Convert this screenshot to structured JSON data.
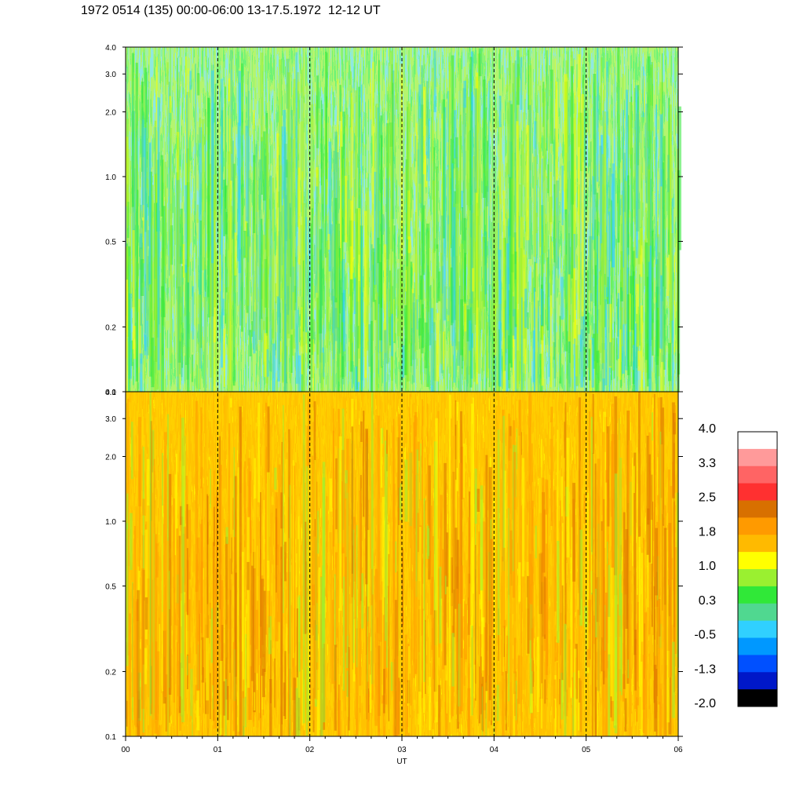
{
  "title": "1972 0514 (135) 00:00-06:00 13-17.5.1972  12-12 UT",
  "chart_data": {
    "type": "heatmap",
    "panels": [
      {
        "name": "",
        "ylim": [
          0.1,
          4.0
        ],
        "yscale": "log",
        "dominant": "green"
      },
      {
        "name": "",
        "ylim": [
          0.1,
          4.0
        ],
        "yscale": "log",
        "dominant": "orange"
      }
    ],
    "xlabel": "UT",
    "x_ticks": [
      "00",
      "01",
      "02",
      "03",
      "04",
      "05",
      "06"
    ],
    "xlim": [
      0,
      6
    ],
    "y_ticks": [
      {
        "value": 0.1,
        "label": "0.1"
      },
      {
        "value": 0.2,
        "label": "0.2"
      },
      {
        "value": 0.5,
        "label": "0.5"
      },
      {
        "value": 1.0,
        "label": "1.0"
      },
      {
        "value": 2.0,
        "label": "2.0"
      },
      {
        "value": 3.0,
        "label": "3.0"
      },
      {
        "value": 4.0,
        "label": "4.0"
      }
    ],
    "dashed_hours": [
      1,
      2,
      3,
      4,
      5
    ],
    "colorbar": {
      "range": [
        -2.0,
        4.0
      ],
      "labels": [
        "4.0",
        "3.3",
        "2.5",
        "1.8",
        "1.0",
        "0.3",
        "-0.5",
        "-1.3",
        "-2.0"
      ],
      "colors": [
        "#ffffff",
        "#ff9a9a",
        "#ff6464",
        "#ff3030",
        "#d87000",
        "#ff9a00",
        "#ffba00",
        "#ffff00",
        "#9af030",
        "#30e838",
        "#50d890",
        "#30d0ff",
        "#0098ff",
        "#0050ff",
        "#0018c8",
        "#000000"
      ]
    }
  }
}
